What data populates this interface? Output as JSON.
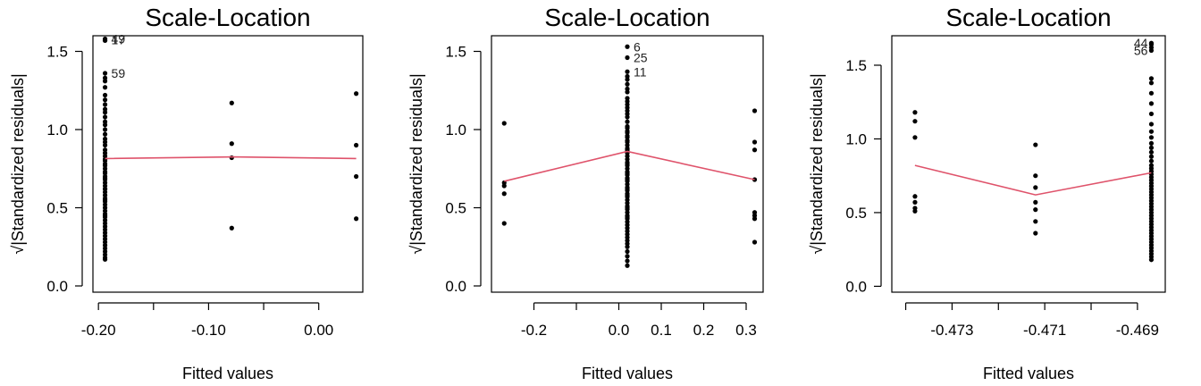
{
  "chart_data": [
    {
      "type": "scatter",
      "title": "Scale-Location",
      "xlabel": "Fitted values",
      "ylabel": "√|Standardized residuals|",
      "xlim": [
        -0.205,
        0.04
      ],
      "ylim": [
        -0.04,
        1.6
      ],
      "xticks": [
        -0.2,
        -0.15,
        -0.1,
        -0.05,
        0.0
      ],
      "xtick_labels": [
        "-0.20",
        "",
        "-0.10",
        "",
        "0.00"
      ],
      "yticks": [
        0.0,
        0.5,
        1.0,
        1.5
      ],
      "ytick_labels": [
        "0.0",
        "0.5",
        "1.0",
        "1.5"
      ],
      "x": [
        -0.194,
        -0.194,
        -0.194,
        -0.194,
        -0.194,
        -0.194,
        -0.194,
        -0.194,
        -0.194,
        -0.194,
        -0.194,
        -0.194,
        -0.194,
        -0.194,
        -0.194,
        -0.194,
        -0.194,
        -0.194,
        -0.194,
        -0.194,
        -0.194,
        -0.194,
        -0.194,
        -0.194,
        -0.194,
        -0.194,
        -0.194,
        -0.194,
        -0.194,
        -0.194,
        -0.194,
        -0.194,
        -0.194,
        -0.194,
        -0.194,
        -0.194,
        -0.194,
        -0.194,
        -0.194,
        -0.194,
        -0.194,
        -0.194,
        -0.194,
        -0.194,
        -0.194,
        -0.194,
        -0.194,
        -0.194,
        -0.194,
        -0.194,
        -0.194,
        -0.194,
        -0.194,
        -0.194,
        -0.194,
        -0.194,
        -0.194,
        -0.194,
        -0.194,
        -0.194,
        -0.194,
        -0.194,
        -0.079,
        -0.079,
        -0.079,
        -0.079,
        0.034,
        0.034,
        0.034,
        0.034
      ],
      "y": [
        1.58,
        1.57,
        1.57,
        1.36,
        1.33,
        1.31,
        1.27,
        1.22,
        1.19,
        1.16,
        1.13,
        1.11,
        1.08,
        1.05,
        1.03,
        1.0,
        0.97,
        0.94,
        0.92,
        0.9,
        0.87,
        0.85,
        0.83,
        0.81,
        0.8,
        0.78,
        0.77,
        0.75,
        0.73,
        0.72,
        0.7,
        0.68,
        0.66,
        0.64,
        0.62,
        0.6,
        0.58,
        0.56,
        0.54,
        0.52,
        0.5,
        0.48,
        0.46,
        0.44,
        0.42,
        0.4,
        0.38,
        0.36,
        0.34,
        0.32,
        0.3,
        0.28,
        0.26,
        0.24,
        0.22,
        0.2,
        0.18,
        0.17,
        0.45,
        0.55,
        0.62,
        0.69,
        1.17,
        0.91,
        0.82,
        0.37,
        1.23,
        0.9,
        0.7,
        0.43
      ],
      "smooth_x": [
        -0.194,
        -0.079,
        0.034
      ],
      "smooth_y": [
        0.815,
        0.825,
        0.815
      ],
      "point_labels": [
        {
          "text": "49",
          "x": -0.194,
          "y": 1.58
        },
        {
          "text": "17",
          "x": -0.194,
          "y": 1.575
        },
        {
          "text": "59",
          "x": -0.194,
          "y": 1.36
        }
      ]
    },
    {
      "type": "scatter",
      "title": "Scale-Location",
      "xlabel": "Fitted values",
      "ylabel": "√|Standardized residuals|",
      "xlim": [
        -0.3,
        0.34
      ],
      "ylim": [
        -0.04,
        1.6
      ],
      "xticks": [
        -0.2,
        -0.1,
        0.0,
        0.1,
        0.2,
        0.3
      ],
      "xtick_labels": [
        "-0.2",
        "",
        "0.0",
        "0.1",
        "0.2",
        "0.3"
      ],
      "yticks": [
        0.0,
        0.5,
        1.0,
        1.5
      ],
      "ytick_labels": [
        "0.0",
        "0.5",
        "1.0",
        "1.5"
      ],
      "x": [
        -0.27,
        -0.27,
        -0.27,
        -0.27,
        -0.27,
        0.02,
        0.02,
        0.02,
        0.02,
        0.02,
        0.02,
        0.02,
        0.02,
        0.02,
        0.02,
        0.02,
        0.02,
        0.02,
        0.02,
        0.02,
        0.02,
        0.02,
        0.02,
        0.02,
        0.02,
        0.02,
        0.02,
        0.02,
        0.02,
        0.02,
        0.02,
        0.02,
        0.02,
        0.02,
        0.02,
        0.02,
        0.02,
        0.02,
        0.02,
        0.02,
        0.02,
        0.02,
        0.02,
        0.02,
        0.02,
        0.02,
        0.02,
        0.02,
        0.02,
        0.02,
        0.02,
        0.02,
        0.02,
        0.02,
        0.02,
        0.02,
        0.02,
        0.02,
        0.02,
        0.02,
        0.02,
        0.02,
        0.02,
        0.02,
        0.02,
        0.02,
        0.02,
        0.02,
        0.02,
        0.02,
        0.02,
        0.02,
        0.02,
        0.02,
        0.02,
        0.32,
        0.32,
        0.32,
        0.32,
        0.32,
        0.32,
        0.32,
        0.32
      ],
      "y": [
        1.04,
        0.66,
        0.59,
        0.4,
        0.64,
        1.53,
        1.46,
        1.37,
        1.32,
        1.29,
        1.24,
        1.2,
        1.16,
        1.12,
        1.08,
        1.05,
        1.01,
        0.98,
        0.95,
        0.92,
        0.9,
        0.87,
        0.85,
        0.83,
        0.81,
        0.79,
        0.77,
        0.75,
        0.73,
        0.71,
        0.69,
        0.67,
        0.65,
        0.63,
        0.61,
        0.59,
        0.57,
        0.55,
        0.53,
        0.51,
        0.49,
        0.47,
        0.45,
        0.43,
        0.41,
        0.39,
        0.37,
        0.35,
        0.33,
        0.31,
        0.29,
        0.27,
        0.25,
        0.22,
        0.19,
        0.16,
        0.13,
        0.62,
        0.58,
        0.72,
        0.88,
        0.96,
        1.02,
        0.44,
        0.5,
        0.68,
        0.78,
        0.86,
        0.93,
        0.99,
        1.1,
        1.14,
        1.18,
        1.26,
        1.34,
        1.12,
        0.92,
        0.87,
        0.47,
        0.45,
        0.43,
        0.28,
        0.68
      ],
      "smooth_x": [
        -0.27,
        0.02,
        0.32
      ],
      "smooth_y": [
        0.67,
        0.86,
        0.68
      ],
      "point_labels": [
        {
          "text": "6",
          "x": 0.02,
          "y": 1.53
        },
        {
          "text": "25",
          "x": 0.02,
          "y": 1.46
        },
        {
          "text": "11",
          "x": 0.02,
          "y": 1.37
        }
      ]
    },
    {
      "type": "scatter",
      "title": "Scale-Location",
      "xlabel": "Fitted values",
      "ylabel": "√|Standardized residuals|",
      "xlim": [
        -0.4743,
        -0.4684
      ],
      "ylim": [
        -0.04,
        1.7
      ],
      "xticks": [
        -0.474,
        -0.473,
        -0.472,
        -0.471,
        -0.47,
        -0.469
      ],
      "xtick_labels": [
        "",
        "-0.473",
        "",
        "-0.471",
        "",
        "-0.469"
      ],
      "yticks": [
        0.0,
        0.5,
        1.0,
        1.5
      ],
      "ytick_labels": [
        "0.0",
        "0.5",
        "1.0",
        "1.5"
      ],
      "x": [
        -0.4738,
        -0.4738,
        -0.4738,
        -0.4738,
        -0.4738,
        -0.4738,
        -0.4738,
        -0.4712,
        -0.4712,
        -0.4712,
        -0.4712,
        -0.4712,
        -0.4712,
        -0.4712,
        -0.4687,
        -0.4687,
        -0.4687,
        -0.4687,
        -0.4687,
        -0.4687,
        -0.4687,
        -0.4687,
        -0.4687,
        -0.4687,
        -0.4687,
        -0.4687,
        -0.4687,
        -0.4687,
        -0.4687,
        -0.4687,
        -0.4687,
        -0.4687,
        -0.4687,
        -0.4687,
        -0.4687,
        -0.4687,
        -0.4687,
        -0.4687,
        -0.4687,
        -0.4687,
        -0.4687,
        -0.4687,
        -0.4687,
        -0.4687,
        -0.4687,
        -0.4687,
        -0.4687,
        -0.4687,
        -0.4687,
        -0.4687,
        -0.4687,
        -0.4687,
        -0.4687,
        -0.4687,
        -0.4687,
        -0.4687,
        -0.4687,
        -0.4687,
        -0.4687,
        -0.4687,
        -0.4687,
        -0.4687,
        -0.4687,
        -0.4687
      ],
      "y": [
        1.18,
        1.12,
        1.01,
        0.61,
        0.57,
        0.53,
        0.51,
        0.96,
        0.75,
        0.67,
        0.57,
        0.52,
        0.44,
        0.36,
        1.65,
        1.64,
        1.62,
        1.6,
        1.41,
        1.38,
        1.31,
        1.24,
        1.17,
        1.1,
        1.05,
        1.01,
        0.97,
        0.94,
        0.91,
        0.88,
        0.85,
        0.82,
        0.8,
        0.78,
        0.76,
        0.74,
        0.72,
        0.7,
        0.68,
        0.66,
        0.64,
        0.62,
        0.6,
        0.58,
        0.56,
        0.54,
        0.52,
        0.5,
        0.48,
        0.46,
        0.44,
        0.42,
        0.4,
        0.38,
        0.36,
        0.34,
        0.32,
        0.3,
        0.28,
        0.26,
        0.24,
        0.22,
        0.2,
        0.18
      ],
      "smooth_x": [
        -0.4738,
        -0.4712,
        -0.4687
      ],
      "smooth_y": [
        0.82,
        0.62,
        0.77
      ],
      "point_labels": [
        {
          "text": "44",
          "x": -0.4687,
          "y": 1.65
        },
        {
          "text": "56",
          "x": -0.4687,
          "y": 1.6
        }
      ]
    }
  ]
}
